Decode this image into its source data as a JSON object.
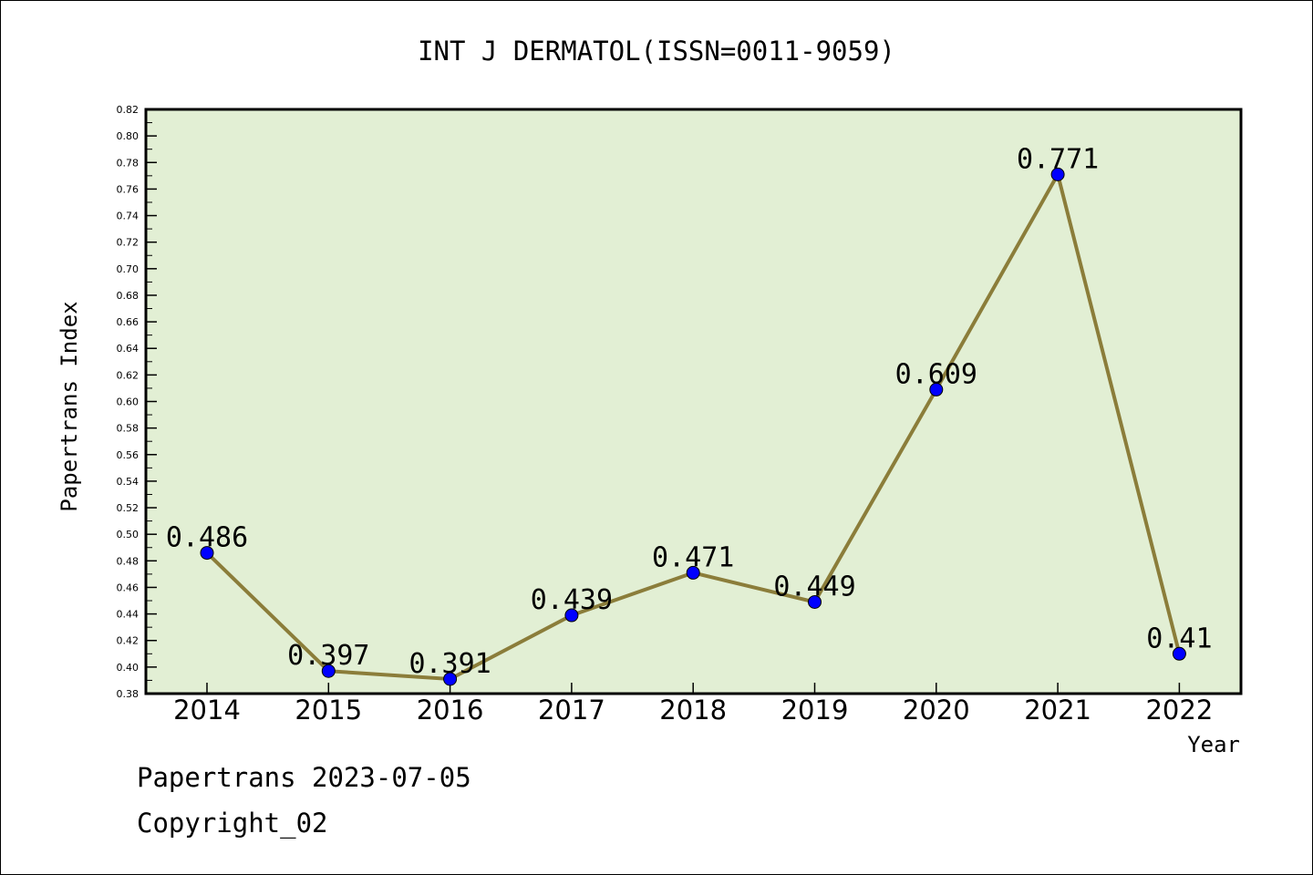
{
  "chart_data": {
    "type": "line",
    "title": "INT J DERMATOL(ISSN=0011-9059)",
    "xlabel": "Year",
    "ylabel": "Papertrans Index",
    "categories": [
      "2014",
      "2015",
      "2016",
      "2017",
      "2018",
      "2019",
      "2020",
      "2021",
      "2022"
    ],
    "values": [
      0.486,
      0.397,
      0.391,
      0.439,
      0.471,
      0.449,
      0.609,
      0.771,
      0.41
    ],
    "data_labels": [
      "0.486",
      "0.397",
      "0.391",
      "0.439",
      "0.471",
      "0.449",
      "0.609",
      "0.771",
      "0.41"
    ],
    "ylim": [
      0.38,
      0.82
    ],
    "yticks": [
      "0.38",
      "0.40",
      "0.42",
      "0.44",
      "0.46",
      "0.48",
      "0.50",
      "0.52",
      "0.54",
      "0.56",
      "0.58",
      "0.60",
      "0.62",
      "0.64",
      "0.66",
      "0.68",
      "0.70",
      "0.72",
      "0.74",
      "0.76",
      "0.78",
      "0.80",
      "0.82"
    ],
    "grid": false,
    "colors": {
      "plot_background": "#e2efd4",
      "line": "#8b7d3a",
      "marker": "#0000ff"
    }
  },
  "footer": {
    "line1": "Papertrans 2023-07-05",
    "line2": "Copyright_02"
  }
}
